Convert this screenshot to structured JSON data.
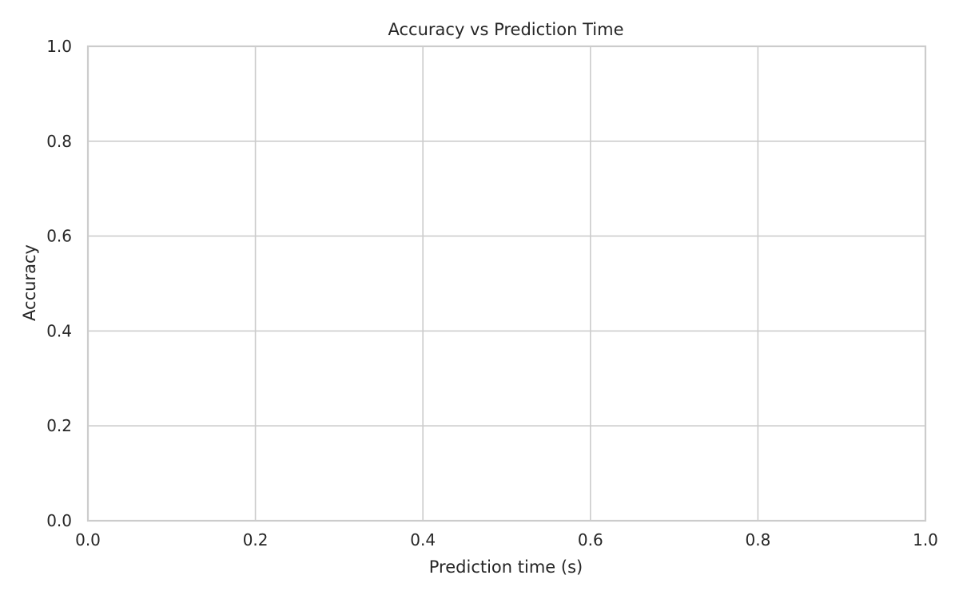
{
  "chart_data": {
    "type": "scatter",
    "title": "Accuracy vs Prediction Time",
    "xlabel": "Prediction time (s)",
    "ylabel": "Accuracy",
    "xlim": [
      0.0,
      1.0
    ],
    "ylim": [
      0.0,
      1.0
    ],
    "x_ticks": [
      0.0,
      0.2,
      0.4,
      0.6,
      0.8,
      1.0
    ],
    "y_ticks": [
      0.0,
      0.2,
      0.4,
      0.6,
      0.8,
      1.0
    ],
    "x_tick_labels": [
      "0.0",
      "0.2",
      "0.4",
      "0.6",
      "0.8",
      "1.0"
    ],
    "y_tick_labels": [
      "0.0",
      "0.2",
      "0.4",
      "0.6",
      "0.8",
      "1.0"
    ],
    "grid": true,
    "series": []
  }
}
